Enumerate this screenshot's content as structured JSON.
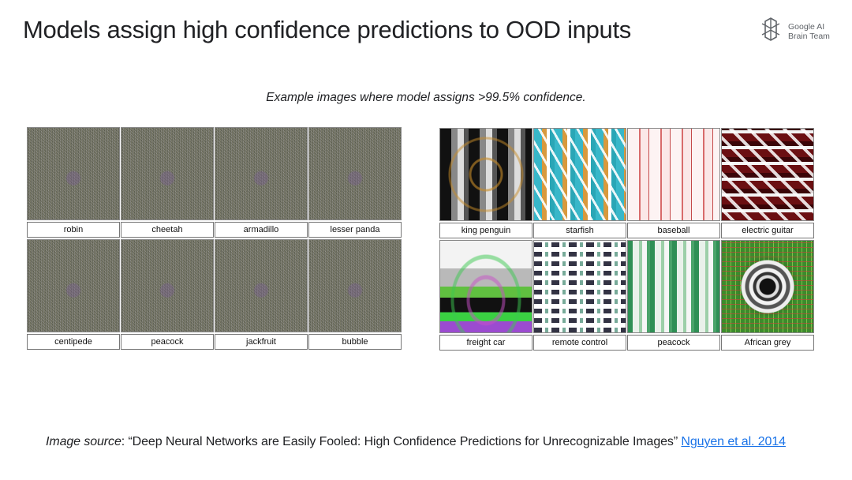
{
  "slide": {
    "title": "Models assign high confidence predictions to OOD inputs",
    "subtitle": "Example images where model assigns >99.5% confidence."
  },
  "brand": {
    "line1": "Google AI",
    "line2": "Brain Team",
    "icon": "google-ai-brain-logo-icon",
    "color": "#5f6368"
  },
  "left_grid": {
    "labels": [
      "robin",
      "cheetah",
      "armadillo",
      "lesser panda",
      "centipede",
      "peacock",
      "jackfruit",
      "bubble"
    ]
  },
  "right_grid": {
    "labels": [
      "king penguin",
      "starfish",
      "baseball",
      "electric guitar",
      "freight car",
      "remote control",
      "peacock",
      "African grey"
    ]
  },
  "source": {
    "lead": "Image source",
    "colon": ":",
    "text": " “Deep Neural Networks are Easily Fooled: High Confidence Predictions for Unrecognizable Images” ",
    "link_text": "Nguyen et al. 2014",
    "link_color": "#1a73e8"
  }
}
